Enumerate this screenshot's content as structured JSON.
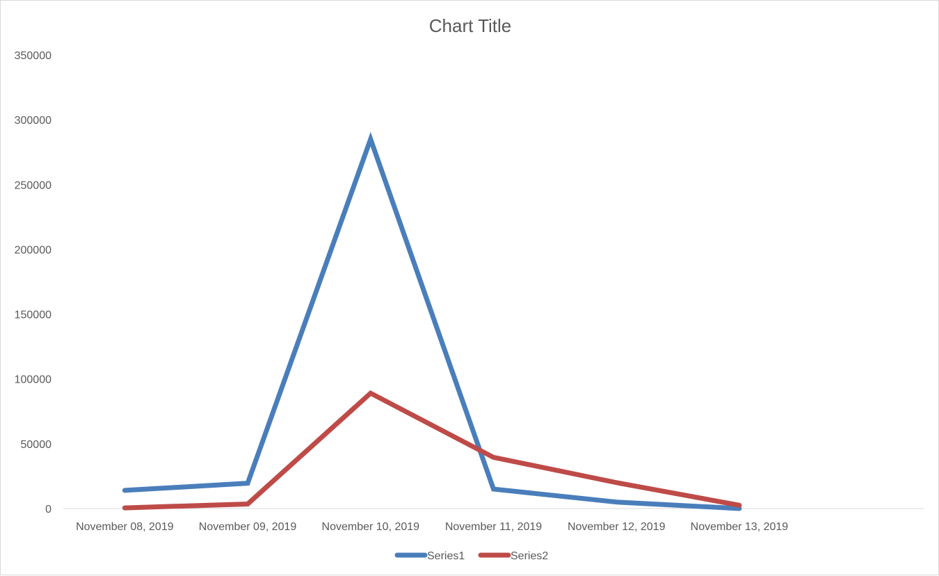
{
  "chart_data": {
    "type": "line",
    "title": "Chart Title",
    "xlabel": "",
    "ylabel": "",
    "categories": [
      "November 08, 2019",
      "November 09, 2019",
      "November 10, 2019",
      "November 11, 2019",
      "November 12, 2019",
      "November 13, 2019"
    ],
    "extra_empty_categories": 1,
    "ylim": [
      0,
      350000
    ],
    "yticks": [
      0,
      50000,
      100000,
      150000,
      200000,
      250000,
      300000,
      350000
    ],
    "grid": false,
    "legend_position": "bottom",
    "series": [
      {
        "name": "Series1",
        "color": "#4a7ebb",
        "values": [
          14000,
          19500,
          285000,
          15000,
          5000,
          0
        ]
      },
      {
        "name": "Series2",
        "color": "#be4b48",
        "values": [
          500,
          3500,
          89000,
          39500,
          20000,
          2500
        ]
      }
    ]
  }
}
